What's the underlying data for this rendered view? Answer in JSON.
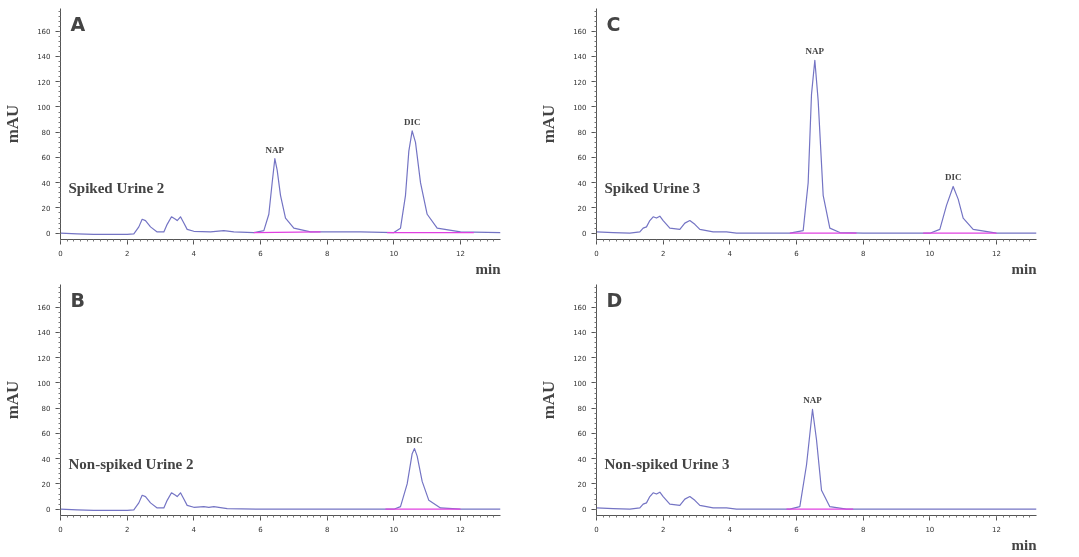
{
  "chart_data": [
    {
      "type": "line",
      "title": "A",
      "xlabel": "min",
      "ylabel": "mAU",
      "xlim": [
        0,
        13.2
      ],
      "ylim": [
        -5,
        178
      ],
      "xticks": [
        0,
        2,
        4,
        6,
        8,
        10,
        12
      ],
      "yticks": [
        0,
        20,
        40,
        60,
        80,
        100,
        120,
        140,
        160
      ],
      "grid": false,
      "annotations": [
        "Spiked Urine 2",
        {
          "text": "NAP",
          "x": 6.43,
          "y": 59
        },
        {
          "text": "DIC",
          "x": 10.55,
          "y": 81
        }
      ],
      "series": [
        {
          "color": "#7474c4",
          "x": [
            0,
            0.5,
            1,
            2,
            2.2,
            2.35,
            2.45,
            2.55,
            2.7,
            2.9,
            3.1,
            3.2,
            3.33,
            3.45,
            3.5,
            3.6,
            3.7,
            3.8,
            4.0,
            4.5,
            4.9,
            5.2,
            5.8,
            6.1,
            6.25,
            6.35,
            6.43,
            6.5,
            6.6,
            6.75,
            7.0,
            7.5,
            8,
            9,
            10,
            10.2,
            10.35,
            10.45,
            10.55,
            10.65,
            10.8,
            11,
            11.3,
            12,
            13.2
          ],
          "values": [
            0,
            -0.5,
            -1,
            -1,
            -0.5,
            5,
            11,
            10,
            5,
            1,
            1,
            7,
            13,
            11,
            10,
            13,
            8,
            3,
            1.5,
            1,
            2,
            1,
            0.5,
            2,
            15,
            40,
            59,
            50,
            30,
            12,
            4,
            1,
            1,
            1,
            0.5,
            4,
            30,
            65,
            81,
            72,
            40,
            15,
            4,
            1,
            0.5
          ]
        },
        {
          "color": "#e040e0",
          "x": [
            5.8,
            7.8
          ],
          "values": [
            0.5,
            1
          ]
        },
        {
          "color": "#e040e0",
          "x": [
            9.8,
            12.4
          ],
          "values": [
            0.5,
            0.5
          ]
        }
      ]
    },
    {
      "type": "line",
      "title": "C",
      "xlabel": "min",
      "ylabel": "mAU",
      "xlim": [
        0,
        13.2
      ],
      "ylim": [
        -5,
        178
      ],
      "xticks": [
        0,
        2,
        4,
        6,
        8,
        10,
        12
      ],
      "yticks": [
        0,
        20,
        40,
        60,
        80,
        100,
        120,
        140,
        160
      ],
      "grid": false,
      "annotations": [
        "Spiked Urine 3",
        {
          "text": "NAP",
          "x": 6.55,
          "y": 137
        },
        {
          "text": "DIC",
          "x": 10.7,
          "y": 37
        }
      ],
      "series": [
        {
          "color": "#7474c4",
          "x": [
            0,
            0.5,
            1,
            1.3,
            1.4,
            1.5,
            1.6,
            1.7,
            1.8,
            1.9,
            2.0,
            2.2,
            2.5,
            2.65,
            2.8,
            2.95,
            3.1,
            3.5,
            3.9,
            4.2,
            5.8,
            6.2,
            6.35,
            6.45,
            6.55,
            6.65,
            6.8,
            7.0,
            7.3,
            8,
            10,
            10.3,
            10.5,
            10.7,
            10.85,
            11.0,
            11.3,
            12,
            13.2
          ],
          "values": [
            1,
            0.5,
            0,
            1,
            4,
            5,
            10,
            13,
            12,
            13.5,
            10,
            4,
            3,
            8,
            10,
            7,
            3,
            1,
            1,
            0,
            0,
            2,
            40,
            110,
            137,
            105,
            30,
            4,
            0.5,
            0,
            0,
            3,
            22,
            37,
            27,
            12,
            3,
            0,
            0
          ]
        },
        {
          "color": "#e040e0",
          "x": [
            5.8,
            7.8
          ],
          "values": [
            0,
            0
          ]
        },
        {
          "color": "#e040e0",
          "x": [
            9.8,
            12
          ],
          "values": [
            0,
            0
          ]
        }
      ]
    },
    {
      "type": "line",
      "title": "B",
      "ylabel": "mAU",
      "xlim": [
        0,
        13.2
      ],
      "ylim": [
        -5,
        178
      ],
      "xticks": [
        0,
        2,
        4,
        6,
        8,
        10,
        12
      ],
      "yticks": [
        0,
        20,
        40,
        60,
        80,
        100,
        120,
        140,
        160
      ],
      "grid": false,
      "annotations": [
        "Non-spiked Urine 2",
        {
          "text": "DIC",
          "x": 10.62,
          "y": 48
        }
      ],
      "series": [
        {
          "color": "#7474c4",
          "x": [
            0,
            0.5,
            1,
            2,
            2.2,
            2.35,
            2.45,
            2.55,
            2.7,
            2.9,
            3.1,
            3.2,
            3.33,
            3.45,
            3.5,
            3.6,
            3.7,
            3.8,
            4.0,
            4.3,
            4.45,
            4.6,
            5,
            6,
            8,
            10,
            10.2,
            10.4,
            10.55,
            10.62,
            10.7,
            10.85,
            11.05,
            11.4,
            12,
            13.2
          ],
          "values": [
            0,
            -0.5,
            -1,
            -1,
            -0.5,
            5,
            11,
            10,
            5,
            1,
            1,
            7,
            13,
            11,
            10,
            13,
            8,
            3,
            1.5,
            2,
            1.5,
            2,
            0.5,
            0,
            0,
            0,
            2,
            20,
            44,
            48,
            42,
            22,
            7,
            1,
            0,
            0
          ]
        },
        {
          "color": "#e040e0",
          "x": [
            9.75,
            12
          ],
          "values": [
            0,
            0
          ]
        }
      ]
    },
    {
      "type": "line",
      "title": "D",
      "xlabel": "min",
      "ylabel": "mAU",
      "xlim": [
        0,
        13.2
      ],
      "ylim": [
        -5,
        178
      ],
      "xticks": [
        0,
        2,
        4,
        6,
        8,
        10,
        12
      ],
      "yticks": [
        0,
        20,
        40,
        60,
        80,
        100,
        120,
        140,
        160
      ],
      "grid": false,
      "annotations": [
        "Non-spiked Urine 3",
        {
          "text": "NAP",
          "x": 6.48,
          "y": 79
        }
      ],
      "series": [
        {
          "color": "#7474c4",
          "x": [
            0,
            0.5,
            1,
            1.3,
            1.4,
            1.5,
            1.6,
            1.7,
            1.8,
            1.9,
            2.0,
            2.2,
            2.5,
            2.65,
            2.8,
            2.95,
            3.1,
            3.5,
            3.9,
            4.2,
            5.8,
            6.1,
            6.3,
            6.48,
            6.6,
            6.75,
            7.0,
            7.5,
            13.2
          ],
          "values": [
            1,
            0.5,
            0,
            1,
            4,
            5,
            10,
            13,
            12,
            13.5,
            10,
            4,
            3,
            8,
            10,
            7,
            3,
            1,
            1,
            0,
            0,
            2,
            35,
            79,
            55,
            15,
            2,
            0,
            0
          ]
        },
        {
          "color": "#e040e0",
          "x": [
            5.7,
            7.7
          ],
          "values": [
            0,
            0
          ]
        }
      ]
    }
  ]
}
